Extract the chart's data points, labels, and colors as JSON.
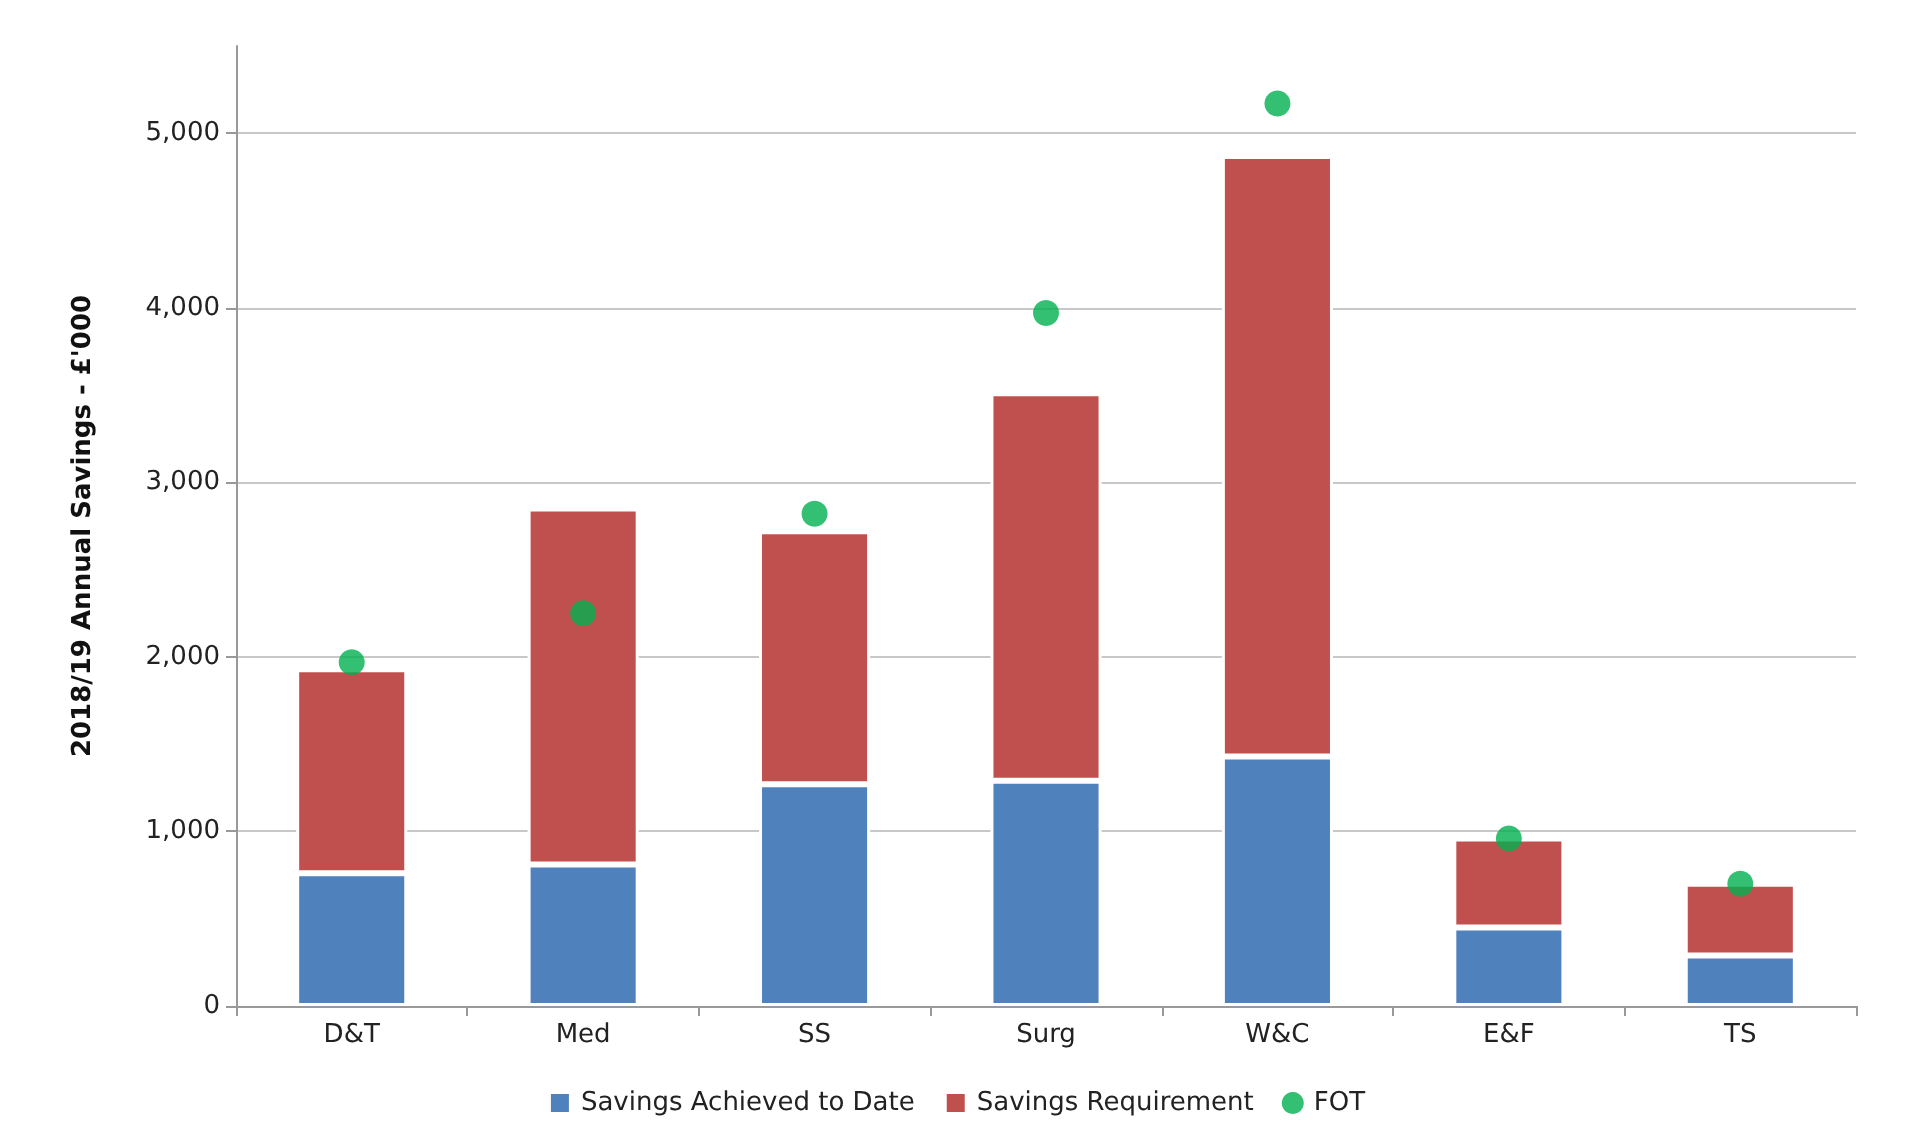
{
  "chart_data": {
    "type": "bar",
    "stacked": true,
    "ylabel": "2018/19 Annual Savings - £'000",
    "categories": [
      "D&T",
      "Med",
      "SS",
      "Surg",
      "W&C",
      "E&F",
      "TS"
    ],
    "series": [
      {
        "name": "Savings Achieved to Date",
        "color": "#4f81bd",
        "values": [
          760,
          810,
          1270,
          1290,
          1430,
          450,
          290
        ]
      },
      {
        "name": "Savings Requirement",
        "color": "#c0504d",
        "values": [
          1170,
          2040,
          1450,
          2220,
          3440,
          510,
          410
        ]
      },
      {
        "name": "FOT",
        "type": "scatter",
        "color": "#00b050",
        "marker": "circle",
        "values": [
          1970,
          2250,
          2820,
          3970,
          5170,
          960,
          700
        ]
      }
    ],
    "ylim": [
      0,
      5500
    ],
    "yticks": [
      0,
      {
        "value": 1000,
        "label": "1,000"
      },
      {
        "value": 2000,
        "label": "2,000"
      },
      {
        "value": 3000,
        "label": "3,000"
      },
      {
        "value": 4000,
        "label": "4,000"
      },
      {
        "value": 5000,
        "label": "5,000"
      }
    ],
    "grid": "y",
    "legend": "bottom"
  }
}
